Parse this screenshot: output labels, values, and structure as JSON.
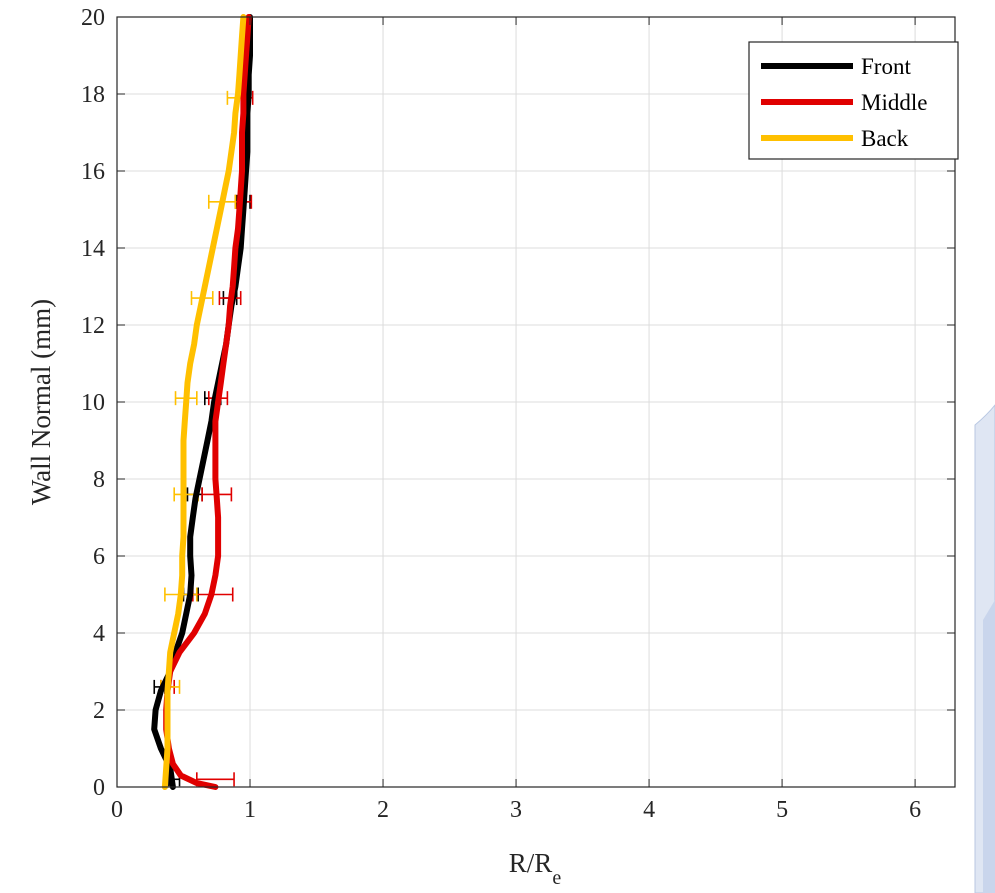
{
  "chart_data": {
    "type": "line",
    "title": "",
    "xlabel": "R/R",
    "xlabel_subscript": "e",
    "ylabel": "Wall Normal (mm)",
    "xlim": [
      0,
      6.3
    ],
    "ylim": [
      0,
      20
    ],
    "xticks": [
      0,
      1,
      2,
      3,
      4,
      5,
      6
    ],
    "yticks": [
      0,
      2,
      4,
      6,
      8,
      10,
      12,
      14,
      16,
      18,
      20
    ],
    "grid": true,
    "legend_position": "top-right",
    "series": [
      {
        "name": "Front",
        "color": "#000000",
        "points": [
          [
            0.42,
            0
          ],
          [
            0.4,
            0.5
          ],
          [
            0.33,
            1.0
          ],
          [
            0.28,
            1.5
          ],
          [
            0.29,
            2.0
          ],
          [
            0.33,
            2.5
          ],
          [
            0.4,
            3.0
          ],
          [
            0.44,
            3.5
          ],
          [
            0.49,
            4.0
          ],
          [
            0.52,
            4.5
          ],
          [
            0.55,
            5.0
          ],
          [
            0.56,
            5.5
          ],
          [
            0.55,
            6.0
          ],
          [
            0.55,
            6.5
          ],
          [
            0.57,
            7.0
          ],
          [
            0.59,
            7.5
          ],
          [
            0.62,
            8.0
          ],
          [
            0.65,
            8.5
          ],
          [
            0.68,
            9.0
          ],
          [
            0.71,
            9.5
          ],
          [
            0.73,
            10.0
          ],
          [
            0.76,
            10.5
          ],
          [
            0.79,
            11.0
          ],
          [
            0.82,
            11.5
          ],
          [
            0.84,
            12.0
          ],
          [
            0.86,
            12.5
          ],
          [
            0.89,
            13.0
          ],
          [
            0.91,
            13.5
          ],
          [
            0.93,
            14.0
          ],
          [
            0.94,
            14.5
          ],
          [
            0.95,
            15.0
          ],
          [
            0.96,
            15.5
          ],
          [
            0.97,
            16.0
          ],
          [
            0.98,
            16.5
          ],
          [
            0.98,
            17.0
          ],
          [
            0.98,
            17.5
          ],
          [
            0.99,
            18.0
          ],
          [
            0.99,
            18.5
          ],
          [
            1.0,
            19.0
          ],
          [
            1.0,
            19.5
          ],
          [
            1.0,
            20.0
          ]
        ],
        "error_bars": [
          {
            "y": 0.2,
            "x": 0.43,
            "lo": 0.39,
            "hi": 0.47
          },
          {
            "y": 2.6,
            "x": 0.32,
            "lo": 0.28,
            "hi": 0.36
          },
          {
            "y": 5.0,
            "x": 0.55,
            "lo": 0.5,
            "hi": 0.61
          },
          {
            "y": 7.6,
            "x": 0.58,
            "lo": 0.53,
            "hi": 0.64
          },
          {
            "y": 10.1,
            "x": 0.72,
            "lo": 0.66,
            "hi": 0.78
          },
          {
            "y": 12.7,
            "x": 0.85,
            "lo": 0.8,
            "hi": 0.9
          },
          {
            "y": 15.2,
            "x": 0.95,
            "lo": 0.9,
            "hi": 1.0
          }
        ]
      },
      {
        "name": "Middle",
        "color": "#e00000",
        "points": [
          [
            0.74,
            0
          ],
          [
            0.6,
            0.1
          ],
          [
            0.48,
            0.3
          ],
          [
            0.42,
            0.6
          ],
          [
            0.39,
            1.0
          ],
          [
            0.37,
            1.5
          ],
          [
            0.37,
            2.0
          ],
          [
            0.38,
            2.5
          ],
          [
            0.4,
            3.0
          ],
          [
            0.47,
            3.5
          ],
          [
            0.58,
            4.0
          ],
          [
            0.66,
            4.5
          ],
          [
            0.71,
            5.0
          ],
          [
            0.74,
            5.5
          ],
          [
            0.76,
            6.0
          ],
          [
            0.76,
            6.5
          ],
          [
            0.76,
            7.0
          ],
          [
            0.75,
            7.5
          ],
          [
            0.74,
            8.0
          ],
          [
            0.74,
            8.5
          ],
          [
            0.74,
            9.0
          ],
          [
            0.74,
            9.5
          ],
          [
            0.76,
            10.0
          ],
          [
            0.78,
            10.5
          ],
          [
            0.8,
            11.0
          ],
          [
            0.82,
            11.5
          ],
          [
            0.84,
            12.0
          ],
          [
            0.85,
            12.5
          ],
          [
            0.87,
            13.0
          ],
          [
            0.88,
            13.5
          ],
          [
            0.89,
            14.0
          ],
          [
            0.91,
            14.5
          ],
          [
            0.92,
            15.0
          ],
          [
            0.93,
            15.5
          ],
          [
            0.94,
            16.0
          ],
          [
            0.94,
            16.5
          ],
          [
            0.94,
            17.0
          ],
          [
            0.95,
            17.5
          ],
          [
            0.95,
            18.0
          ],
          [
            0.96,
            18.5
          ],
          [
            0.97,
            19.0
          ],
          [
            0.98,
            19.5
          ],
          [
            0.99,
            20.0
          ]
        ],
        "error_bars": [
          {
            "y": 0.2,
            "x": 0.74,
            "lo": 0.6,
            "hi": 0.88
          },
          {
            "y": 2.6,
            "x": 0.38,
            "lo": 0.33,
            "hi": 0.43
          },
          {
            "y": 5.0,
            "x": 0.72,
            "lo": 0.57,
            "hi": 0.87
          },
          {
            "y": 7.6,
            "x": 0.75,
            "lo": 0.64,
            "hi": 0.86
          },
          {
            "y": 10.1,
            "x": 0.76,
            "lo": 0.69,
            "hi": 0.83
          },
          {
            "y": 12.7,
            "x": 0.85,
            "lo": 0.77,
            "hi": 0.93
          },
          {
            "y": 15.2,
            "x": 0.95,
            "lo": 0.89,
            "hi": 1.01
          },
          {
            "y": 17.9,
            "x": 0.96,
            "lo": 0.9,
            "hi": 1.02
          }
        ]
      },
      {
        "name": "Back",
        "color": "#ffc000",
        "points": [
          [
            0.36,
            0
          ],
          [
            0.37,
            0.5
          ],
          [
            0.38,
            1.0
          ],
          [
            0.38,
            1.5
          ],
          [
            0.38,
            2.0
          ],
          [
            0.38,
            2.5
          ],
          [
            0.39,
            3.0
          ],
          [
            0.4,
            3.5
          ],
          [
            0.43,
            4.0
          ],
          [
            0.46,
            4.5
          ],
          [
            0.48,
            5.0
          ],
          [
            0.49,
            5.5
          ],
          [
            0.49,
            6.0
          ],
          [
            0.5,
            6.5
          ],
          [
            0.5,
            7.0
          ],
          [
            0.5,
            7.5
          ],
          [
            0.5,
            8.0
          ],
          [
            0.5,
            8.5
          ],
          [
            0.5,
            9.0
          ],
          [
            0.51,
            9.5
          ],
          [
            0.52,
            10.0
          ],
          [
            0.53,
            10.5
          ],
          [
            0.55,
            11.0
          ],
          [
            0.58,
            11.5
          ],
          [
            0.6,
            12.0
          ],
          [
            0.63,
            12.5
          ],
          [
            0.66,
            13.0
          ],
          [
            0.69,
            13.5
          ],
          [
            0.72,
            14.0
          ],
          [
            0.75,
            14.5
          ],
          [
            0.78,
            15.0
          ],
          [
            0.81,
            15.5
          ],
          [
            0.84,
            16.0
          ],
          [
            0.86,
            16.5
          ],
          [
            0.88,
            17.0
          ],
          [
            0.89,
            17.5
          ],
          [
            0.91,
            18.0
          ],
          [
            0.92,
            18.5
          ],
          [
            0.93,
            19.0
          ],
          [
            0.94,
            19.5
          ],
          [
            0.95,
            20.0
          ]
        ],
        "error_bars": [
          {
            "y": 2.6,
            "x": 0.4,
            "lo": 0.33,
            "hi": 0.47
          },
          {
            "y": 5.0,
            "x": 0.48,
            "lo": 0.36,
            "hi": 0.6
          },
          {
            "y": 7.6,
            "x": 0.52,
            "lo": 0.43,
            "hi": 0.61
          },
          {
            "y": 10.1,
            "x": 0.52,
            "lo": 0.44,
            "hi": 0.6
          },
          {
            "y": 12.7,
            "x": 0.64,
            "lo": 0.56,
            "hi": 0.72
          },
          {
            "y": 15.2,
            "x": 0.79,
            "lo": 0.69,
            "hi": 0.89
          },
          {
            "y": 17.9,
            "x": 0.9,
            "lo": 0.83,
            "hi": 0.97
          }
        ]
      }
    ]
  }
}
